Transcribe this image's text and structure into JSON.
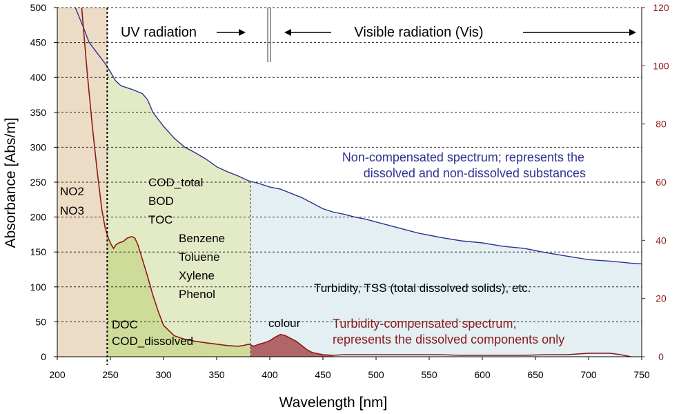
{
  "chart_data": {
    "type": "area",
    "xlabel": "Wavelength [nm]",
    "ylabel": "Absorbance [Abs/m]",
    "xlim": [
      200,
      750
    ],
    "ylim": [
      0,
      500
    ],
    "y2lim": [
      0,
      120
    ],
    "x_ticks": [
      "200",
      "250",
      "300",
      "350",
      "400",
      "450",
      "500",
      "550",
      "600",
      "650",
      "700",
      "750"
    ],
    "y_ticks": [
      "0",
      "50",
      "100",
      "150",
      "200",
      "250",
      "300",
      "350",
      "400",
      "450",
      "500"
    ],
    "y2_ticks": [
      "0",
      "20",
      "40",
      "60",
      "80",
      "100",
      "120"
    ],
    "grid": "horizontal dashed",
    "colors": {
      "blue_line": "#2e3192",
      "red_line": "#8b1a1a",
      "region_nitrate": "#ecdcc6",
      "region_uv_organic": "#e3ebc6",
      "region_vis": "#e4eff3",
      "region_uv_dissolved": "#cfdc99",
      "colour_peak_fill": "#b06666",
      "axis_right": "#8b1a1a"
    },
    "series": [
      {
        "role": "non_compensated",
        "x": [
          217,
          225,
          230,
          235,
          240,
          245,
          250,
          255,
          260,
          270,
          280,
          285,
          290,
          300,
          310,
          320,
          330,
          340,
          350,
          360,
          370,
          380,
          390,
          400,
          410,
          420,
          430,
          440,
          450,
          460,
          470,
          480,
          490,
          500,
          520,
          540,
          560,
          580,
          600,
          620,
          640,
          660,
          680,
          700,
          720,
          740,
          750
        ],
        "y": [
          500,
          470,
          450,
          440,
          430,
          420,
          408,
          395,
          388,
          383,
          377,
          368,
          350,
          330,
          313,
          300,
          292,
          283,
          272,
          265,
          259,
          252,
          248,
          243,
          240,
          234,
          228,
          220,
          212,
          207,
          204,
          200,
          197,
          193,
          185,
          177,
          171,
          166,
          163,
          158,
          155,
          149,
          144,
          139,
          137,
          134,
          133
        ]
      },
      {
        "role": "turbidity_compensated",
        "x": [
          223,
          228,
          233,
          238,
          242,
          245,
          248,
          251,
          253,
          255,
          258,
          262,
          266,
          270,
          273,
          276,
          280,
          285,
          290,
          295,
          300,
          310,
          320,
          330,
          340,
          350,
          360,
          370,
          375,
          380,
          385,
          390,
          395,
          400,
          405,
          410,
          415,
          420,
          425,
          430,
          435,
          440,
          450,
          460,
          470,
          480,
          490,
          500,
          520,
          540,
          560,
          580,
          600,
          620,
          640,
          660,
          680,
          700,
          710,
          720,
          730,
          740
        ],
        "y": [
          500,
          410,
          330,
          260,
          210,
          185,
          170,
          160,
          155,
          160,
          163,
          165,
          170,
          172,
          170,
          160,
          140,
          115,
          88,
          65,
          45,
          30,
          25,
          22,
          20,
          18,
          16,
          15,
          16,
          18,
          15,
          18,
          20,
          23,
          28,
          32,
          30,
          26,
          22,
          16,
          10,
          6,
          3,
          2,
          3,
          3,
          3,
          3,
          3,
          3,
          3,
          2,
          2,
          2,
          2,
          3,
          3,
          5,
          5,
          5,
          3,
          0
        ]
      }
    ],
    "annotations": {
      "uv_radiation": "UV radiation",
      "visible_radiation": "Visible radiation (Vis)",
      "no2": "NO2",
      "no3": "NO3",
      "cod_total": "COD_total",
      "bod": "BOD",
      "toc": "TOC",
      "benzene": "Benzene",
      "toluene": "Toluene",
      "xylene": "Xylene",
      "phenol": "Phenol",
      "doc": "DOC",
      "cod_dissolved": "COD_dissolved",
      "colour": "colour",
      "turbidity_tss": "Turbidity, TSS (total dissolved solids), etc.",
      "non_comp_line1": "Non-compensated spectrum; represents the",
      "non_comp_line2": "dissolved and non-dissolved substances",
      "turb_comp_line1": "Turbidity-compensated spectrum;",
      "turb_comp_line2": "represents the dissolved components only"
    }
  }
}
